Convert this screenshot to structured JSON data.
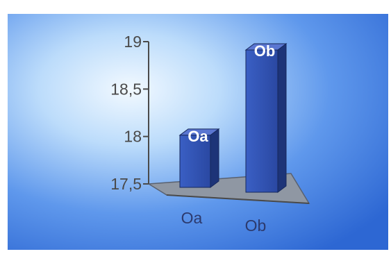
{
  "chart_data": {
    "type": "bar",
    "categories": [
      "Oa",
      "Ob"
    ],
    "values": [
      18.05,
      19.0
    ],
    "data_labels": [
      "Oa",
      "Ob"
    ],
    "y_ticks": [
      "17,5",
      "18",
      "18,5",
      "19"
    ],
    "ylim": [
      17.5,
      19
    ],
    "three_d": true,
    "grid": false,
    "legend": "none",
    "colors": {
      "bar_front": "#2e4fb0",
      "bar_side": "#1d3478",
      "bar_top": "#5a76d1",
      "floor": "#8f97a3",
      "axis": "#4a4a4a",
      "background_center": "#eaf5ff",
      "background_edge": "#2f6ed8"
    }
  }
}
